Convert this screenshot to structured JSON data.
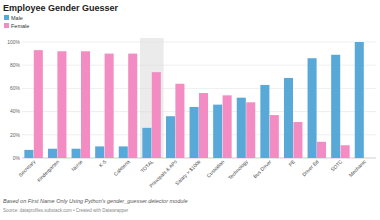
{
  "chart_data": {
    "type": "bar",
    "title": "Employee Gender Guesser",
    "categories": [
      "Secretary",
      "Kindergarten",
      "Nurse",
      "K-5",
      "Cafeteria",
      "TOTAL",
      "Principals & APs",
      "Salary > $100k",
      "Custodian",
      "Technology",
      "Bus Driver",
      "PE",
      "Driver Ed",
      "SOTC",
      "Mechanic"
    ],
    "series": [
      {
        "name": "Male",
        "color": "#58a8d8",
        "values": [
          7,
          8,
          8,
          10,
          10,
          26,
          36,
          44,
          46,
          52,
          63,
          69,
          86,
          89,
          100
        ]
      },
      {
        "name": "Female",
        "color": "#f28cc2",
        "values": [
          93,
          92,
          92,
          90,
          90,
          74,
          64,
          56,
          54,
          48,
          37,
          31,
          14,
          11,
          0
        ]
      }
    ],
    "ylim": [
      0,
      100
    ],
    "yticks": [
      {
        "value": 0,
        "label": "0%"
      },
      {
        "value": 20,
        "label": "20%"
      },
      {
        "value": 40,
        "label": "40%"
      },
      {
        "value": 60,
        "label": "60%"
      },
      {
        "value": 80,
        "label": "80%"
      },
      {
        "value": 100,
        "label": "100%"
      }
    ],
    "grid": true,
    "legend": "top-left",
    "caption": "Based on First Name Only Using Python's gender_guesser.detector module",
    "source": "Source: dataprofiles.substack.com • Created with Datawrapper"
  }
}
